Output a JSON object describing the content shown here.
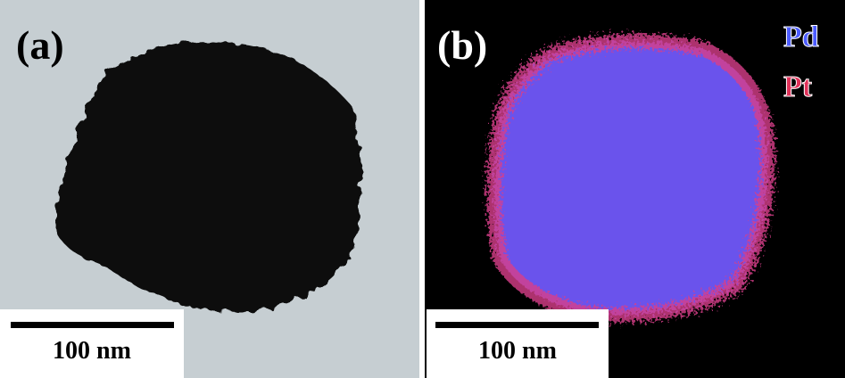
{
  "panels": [
    {
      "label": "(a)",
      "scale_bar": "100 nm"
    },
    {
      "label": "(b)",
      "scale_bar": "100 nm",
      "legend": [
        "Pd",
        "Pt"
      ]
    }
  ]
}
